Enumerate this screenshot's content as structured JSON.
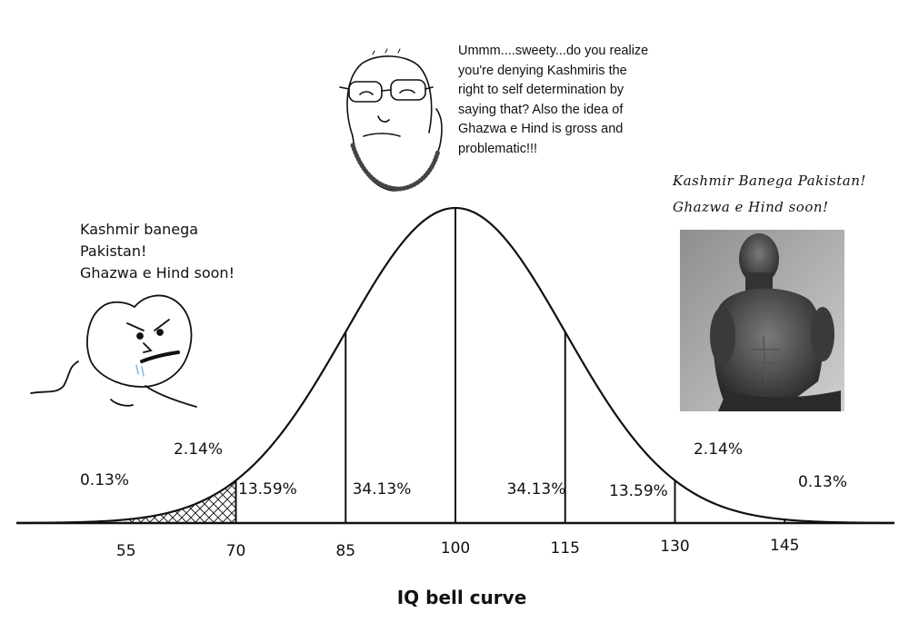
{
  "speech": {
    "left": [
      "Kashmir banega",
      "Pakistan!",
      "Ghazwa e Hind soon!"
    ],
    "middle": [
      "Ummm....sweety...do you realize",
      "you're  denying Kashmiris the",
      "right to self determination by",
      "saying that? Also the idea of",
      "Ghazwa e Hind is gross and",
      "problematic!!!"
    ],
    "right": [
      "Kashmir Banega Pakistan!",
      "Ghazwa e Hind soon!"
    ]
  },
  "characters": {
    "left": "angry-wojak-icon",
    "middle": "soyjak-glasses-icon",
    "right": "gigachad-photo-icon"
  },
  "chart_data": {
    "type": "area",
    "title": "IQ bell curve",
    "mean": 100,
    "sd": 15,
    "xlim": [
      40,
      160
    ],
    "x_ticks": [
      55,
      70,
      85,
      100,
      115,
      130,
      145
    ],
    "x_tick_labels": [
      "55",
      "70",
      "85",
      "100",
      "115",
      "130",
      "145"
    ],
    "bands": [
      {
        "range": [
          40,
          55
        ],
        "label": "0.13%",
        "side": "left",
        "fill": "hatch"
      },
      {
        "range": [
          55,
          70
        ],
        "label": "2.14%",
        "side": "left",
        "fill": "crosshatch"
      },
      {
        "range": [
          70,
          85
        ],
        "label": "13.59%",
        "side": "left",
        "fill": "none"
      },
      {
        "range": [
          85,
          100
        ],
        "label": "34.13%",
        "side": "left",
        "fill": "none"
      },
      {
        "range": [
          100,
          115
        ],
        "label": "34.13%",
        "side": "right",
        "fill": "none"
      },
      {
        "range": [
          115,
          130
        ],
        "label": "13.59%",
        "side": "right",
        "fill": "none"
      },
      {
        "range": [
          130,
          145
        ],
        "label": "2.14%",
        "side": "right",
        "fill": "none"
      },
      {
        "range": [
          145,
          160
        ],
        "label": "0.13%",
        "side": "right",
        "fill": "none"
      }
    ],
    "divider_lines_at": [
      70,
      85,
      100,
      115,
      130,
      145
    ],
    "grid": false,
    "colors": {
      "curve": "#111111",
      "hatch": "#222222",
      "background": "#ffffff"
    }
  }
}
